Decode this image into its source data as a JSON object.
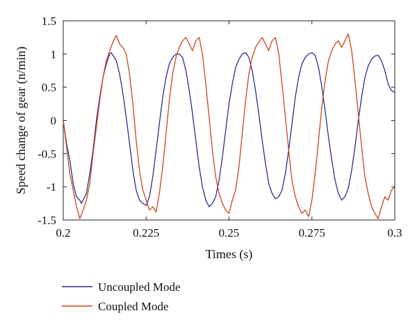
{
  "chart_data": {
    "type": "line",
    "title": "",
    "xlabel": "Times (s)",
    "ylabel": "Speed change of gear (n/min)",
    "xlim": [
      0.2,
      0.3
    ],
    "ylim": [
      -1.5,
      1.5
    ],
    "x_ticks": [
      0.2,
      0.225,
      0.25,
      0.275,
      0.3
    ],
    "x_tick_labels": [
      "0.2",
      "0.225",
      "0.25",
      "0.275",
      "0.3"
    ],
    "y_ticks": [
      1.5,
      1,
      0.5,
      0,
      -0.5,
      -1,
      -1.5
    ],
    "y_tick_labels": [
      "1.5",
      "1",
      "0.5",
      "0",
      "-0.5",
      "-1",
      "-1.5"
    ],
    "grid": false,
    "legend_position": "bottom-left",
    "series": [
      {
        "name": "Uncoupled Mode",
        "color": "#2b2c8c",
        "x": [
          0.2,
          0.201,
          0.202,
          0.203,
          0.204,
          0.205,
          0.2055,
          0.206,
          0.207,
          0.208,
          0.209,
          0.21,
          0.211,
          0.212,
          0.213,
          0.214,
          0.2145,
          0.215,
          0.216,
          0.217,
          0.218,
          0.219,
          0.22,
          0.221,
          0.222,
          0.223,
          0.224,
          0.225,
          0.226,
          0.227,
          0.228,
          0.229,
          0.23,
          0.231,
          0.232,
          0.233,
          0.234,
          0.235,
          0.236,
          0.237,
          0.238,
          0.239,
          0.24,
          0.241,
          0.242,
          0.243,
          0.244,
          0.245,
          0.246,
          0.247,
          0.248,
          0.249,
          0.25,
          0.251,
          0.252,
          0.253,
          0.254,
          0.255,
          0.256,
          0.257,
          0.258,
          0.259,
          0.26,
          0.261,
          0.262,
          0.263,
          0.264,
          0.265,
          0.266,
          0.267,
          0.268,
          0.269,
          0.27,
          0.271,
          0.272,
          0.273,
          0.274,
          0.275,
          0.276,
          0.277,
          0.278,
          0.279,
          0.28,
          0.281,
          0.282,
          0.283,
          0.284,
          0.285,
          0.286,
          0.287,
          0.288,
          0.289,
          0.29,
          0.291,
          0.292,
          0.293,
          0.294,
          0.295,
          0.296,
          0.297,
          0.298,
          0.299,
          0.3
        ],
        "y": [
          0.0,
          -0.35,
          -0.6,
          -0.95,
          -1.15,
          -1.2,
          -1.25,
          -1.2,
          -1.1,
          -0.8,
          -0.45,
          0.0,
          0.35,
          0.65,
          0.85,
          1.0,
          1.02,
          0.98,
          0.9,
          0.7,
          0.4,
          0.05,
          -0.35,
          -0.75,
          -1.05,
          -1.2,
          -1.25,
          -1.28,
          -1.15,
          -0.85,
          -0.45,
          -0.05,
          0.35,
          0.65,
          0.85,
          0.95,
          1.0,
          1.0,
          0.95,
          0.75,
          0.45,
          0.1,
          -0.3,
          -0.7,
          -1.0,
          -1.2,
          -1.3,
          -1.25,
          -1.15,
          -0.9,
          -0.55,
          -0.15,
          0.25,
          0.55,
          0.8,
          0.92,
          1.0,
          1.02,
          0.95,
          0.75,
          0.45,
          0.1,
          -0.3,
          -0.65,
          -0.95,
          -1.1,
          -1.18,
          -1.15,
          -1.05,
          -0.8,
          -0.45,
          -0.05,
          0.35,
          0.65,
          0.85,
          0.95,
          1.0,
          1.02,
          0.98,
          0.8,
          0.5,
          0.15,
          -0.25,
          -0.6,
          -0.9,
          -1.1,
          -1.2,
          -1.15,
          -1.02,
          -0.75,
          -0.4,
          0.0,
          0.35,
          0.65,
          0.82,
          0.92,
          0.97,
          0.98,
          0.9,
          0.75,
          0.55,
          0.45,
          0.42
        ]
      },
      {
        "name": "Coupled Mode",
        "color": "#c8461a",
        "x": [
          0.2,
          0.201,
          0.202,
          0.203,
          0.204,
          0.205,
          0.206,
          0.207,
          0.208,
          0.209,
          0.21,
          0.211,
          0.212,
          0.213,
          0.214,
          0.215,
          0.216,
          0.217,
          0.218,
          0.219,
          0.22,
          0.221,
          0.222,
          0.223,
          0.224,
          0.225,
          0.226,
          0.227,
          0.228,
          0.229,
          0.23,
          0.231,
          0.232,
          0.233,
          0.234,
          0.235,
          0.236,
          0.237,
          0.238,
          0.239,
          0.24,
          0.241,
          0.242,
          0.243,
          0.244,
          0.245,
          0.246,
          0.247,
          0.248,
          0.249,
          0.25,
          0.251,
          0.252,
          0.253,
          0.254,
          0.255,
          0.256,
          0.257,
          0.258,
          0.259,
          0.26,
          0.261,
          0.262,
          0.263,
          0.264,
          0.265,
          0.266,
          0.267,
          0.268,
          0.269,
          0.27,
          0.271,
          0.272,
          0.273,
          0.274,
          0.275,
          0.276,
          0.277,
          0.278,
          0.279,
          0.28,
          0.281,
          0.282,
          0.283,
          0.284,
          0.285,
          0.286,
          0.287,
          0.288,
          0.289,
          0.29,
          0.291,
          0.292,
          0.293,
          0.294,
          0.295,
          0.296,
          0.297,
          0.298,
          0.299,
          0.3
        ],
        "y": [
          0.0,
          -0.4,
          -0.8,
          -1.05,
          -1.3,
          -1.48,
          -1.35,
          -1.2,
          -0.95,
          -0.5,
          -0.1,
          0.3,
          0.65,
          0.9,
          1.05,
          1.18,
          1.28,
          1.15,
          1.1,
          1.0,
          0.7,
          0.25,
          -0.3,
          -0.75,
          -1.05,
          -1.2,
          -1.35,
          -1.3,
          -1.38,
          -1.1,
          -0.7,
          -0.2,
          0.3,
          0.7,
          0.95,
          1.1,
          1.2,
          1.25,
          1.15,
          1.05,
          1.2,
          1.25,
          1.0,
          0.55,
          0.05,
          -0.45,
          -0.85,
          -1.1,
          -1.25,
          -1.35,
          -1.4,
          -1.2,
          -1.05,
          -0.7,
          -0.2,
          0.3,
          0.7,
          0.95,
          1.1,
          1.18,
          1.25,
          1.15,
          1.05,
          1.2,
          1.25,
          1.0,
          0.55,
          0.05,
          -0.45,
          -0.9,
          -1.15,
          -1.3,
          -1.4,
          -1.35,
          -1.45,
          -1.2,
          -0.8,
          -0.3,
          0.2,
          0.6,
          0.9,
          1.05,
          1.15,
          1.2,
          1.1,
          1.2,
          1.3,
          1.05,
          0.6,
          0.1,
          -0.4,
          -0.85,
          -1.1,
          -1.3,
          -1.4,
          -1.48,
          -1.3,
          -1.15,
          -1.2,
          -1.05,
          -1.0
        ]
      }
    ]
  }
}
